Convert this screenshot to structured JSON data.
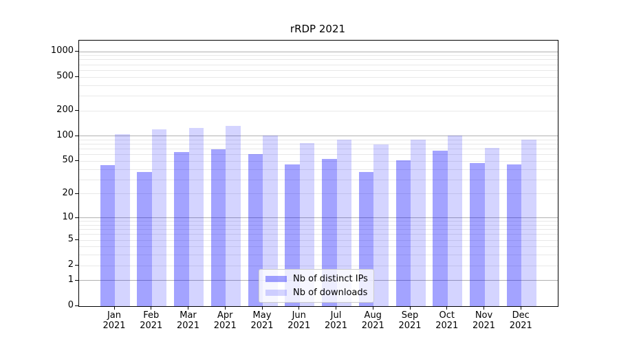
{
  "figure": {
    "title": "rRDP 2021",
    "background_color": "#ffffff"
  },
  "axis": {
    "year": "2021",
    "months": [
      "Jan",
      "Feb",
      "Mar",
      "Apr",
      "May",
      "Jun",
      "Jul",
      "Aug",
      "Sep",
      "Oct",
      "Nov",
      "Dec"
    ],
    "yticks": [
      1000,
      500,
      200,
      100,
      50,
      20,
      10,
      5,
      2,
      1,
      0
    ],
    "grid_major_values": [
      1,
      10,
      100,
      1000
    ],
    "grid_major_color": "#b0b0b0",
    "grid_minor_color": "#e8e8e8"
  },
  "legend": {
    "items": [
      {
        "key": "distinct-ips",
        "label": "Nb of distinct IPs",
        "color": "#0000ff",
        "alpha": 0.36
      },
      {
        "key": "downloads",
        "label": "Nb of downloads",
        "color": "#0000ff",
        "alpha": 0.17
      }
    ]
  },
  "chart_data": {
    "type": "bar",
    "title": "rRDP 2021",
    "categories": [
      "Jan 2021",
      "Feb 2021",
      "Mar 2021",
      "Apr 2021",
      "May 2021",
      "Jun 2021",
      "Jul 2021",
      "Aug 2021",
      "Sep 2021",
      "Oct 2021",
      "Nov 2021",
      "Dec 2021"
    ],
    "series": [
      {
        "key": "distinct-ips",
        "name": "Nb of distinct IPs",
        "color": "#0000ff",
        "alpha": 0.36,
        "values": [
          45,
          37,
          64,
          70,
          61,
          46,
          53,
          37,
          51,
          67,
          48,
          46
        ]
      },
      {
        "key": "downloads",
        "name": "Nb of downloads",
        "color": "#0000ff",
        "alpha": 0.17,
        "values": [
          106,
          120,
          125,
          133,
          102,
          83,
          90,
          80,
          91,
          102,
          73,
          90
        ]
      }
    ],
    "xlabel": "",
    "ylabel": "",
    "yscale": "log10(1+y)",
    "ylim": [
      0,
      1350
    ],
    "yticks": [
      0,
      1,
      2,
      5,
      10,
      20,
      50,
      100,
      200,
      500,
      1000
    ],
    "grid": true,
    "legend_position": "lower center inside plot"
  }
}
